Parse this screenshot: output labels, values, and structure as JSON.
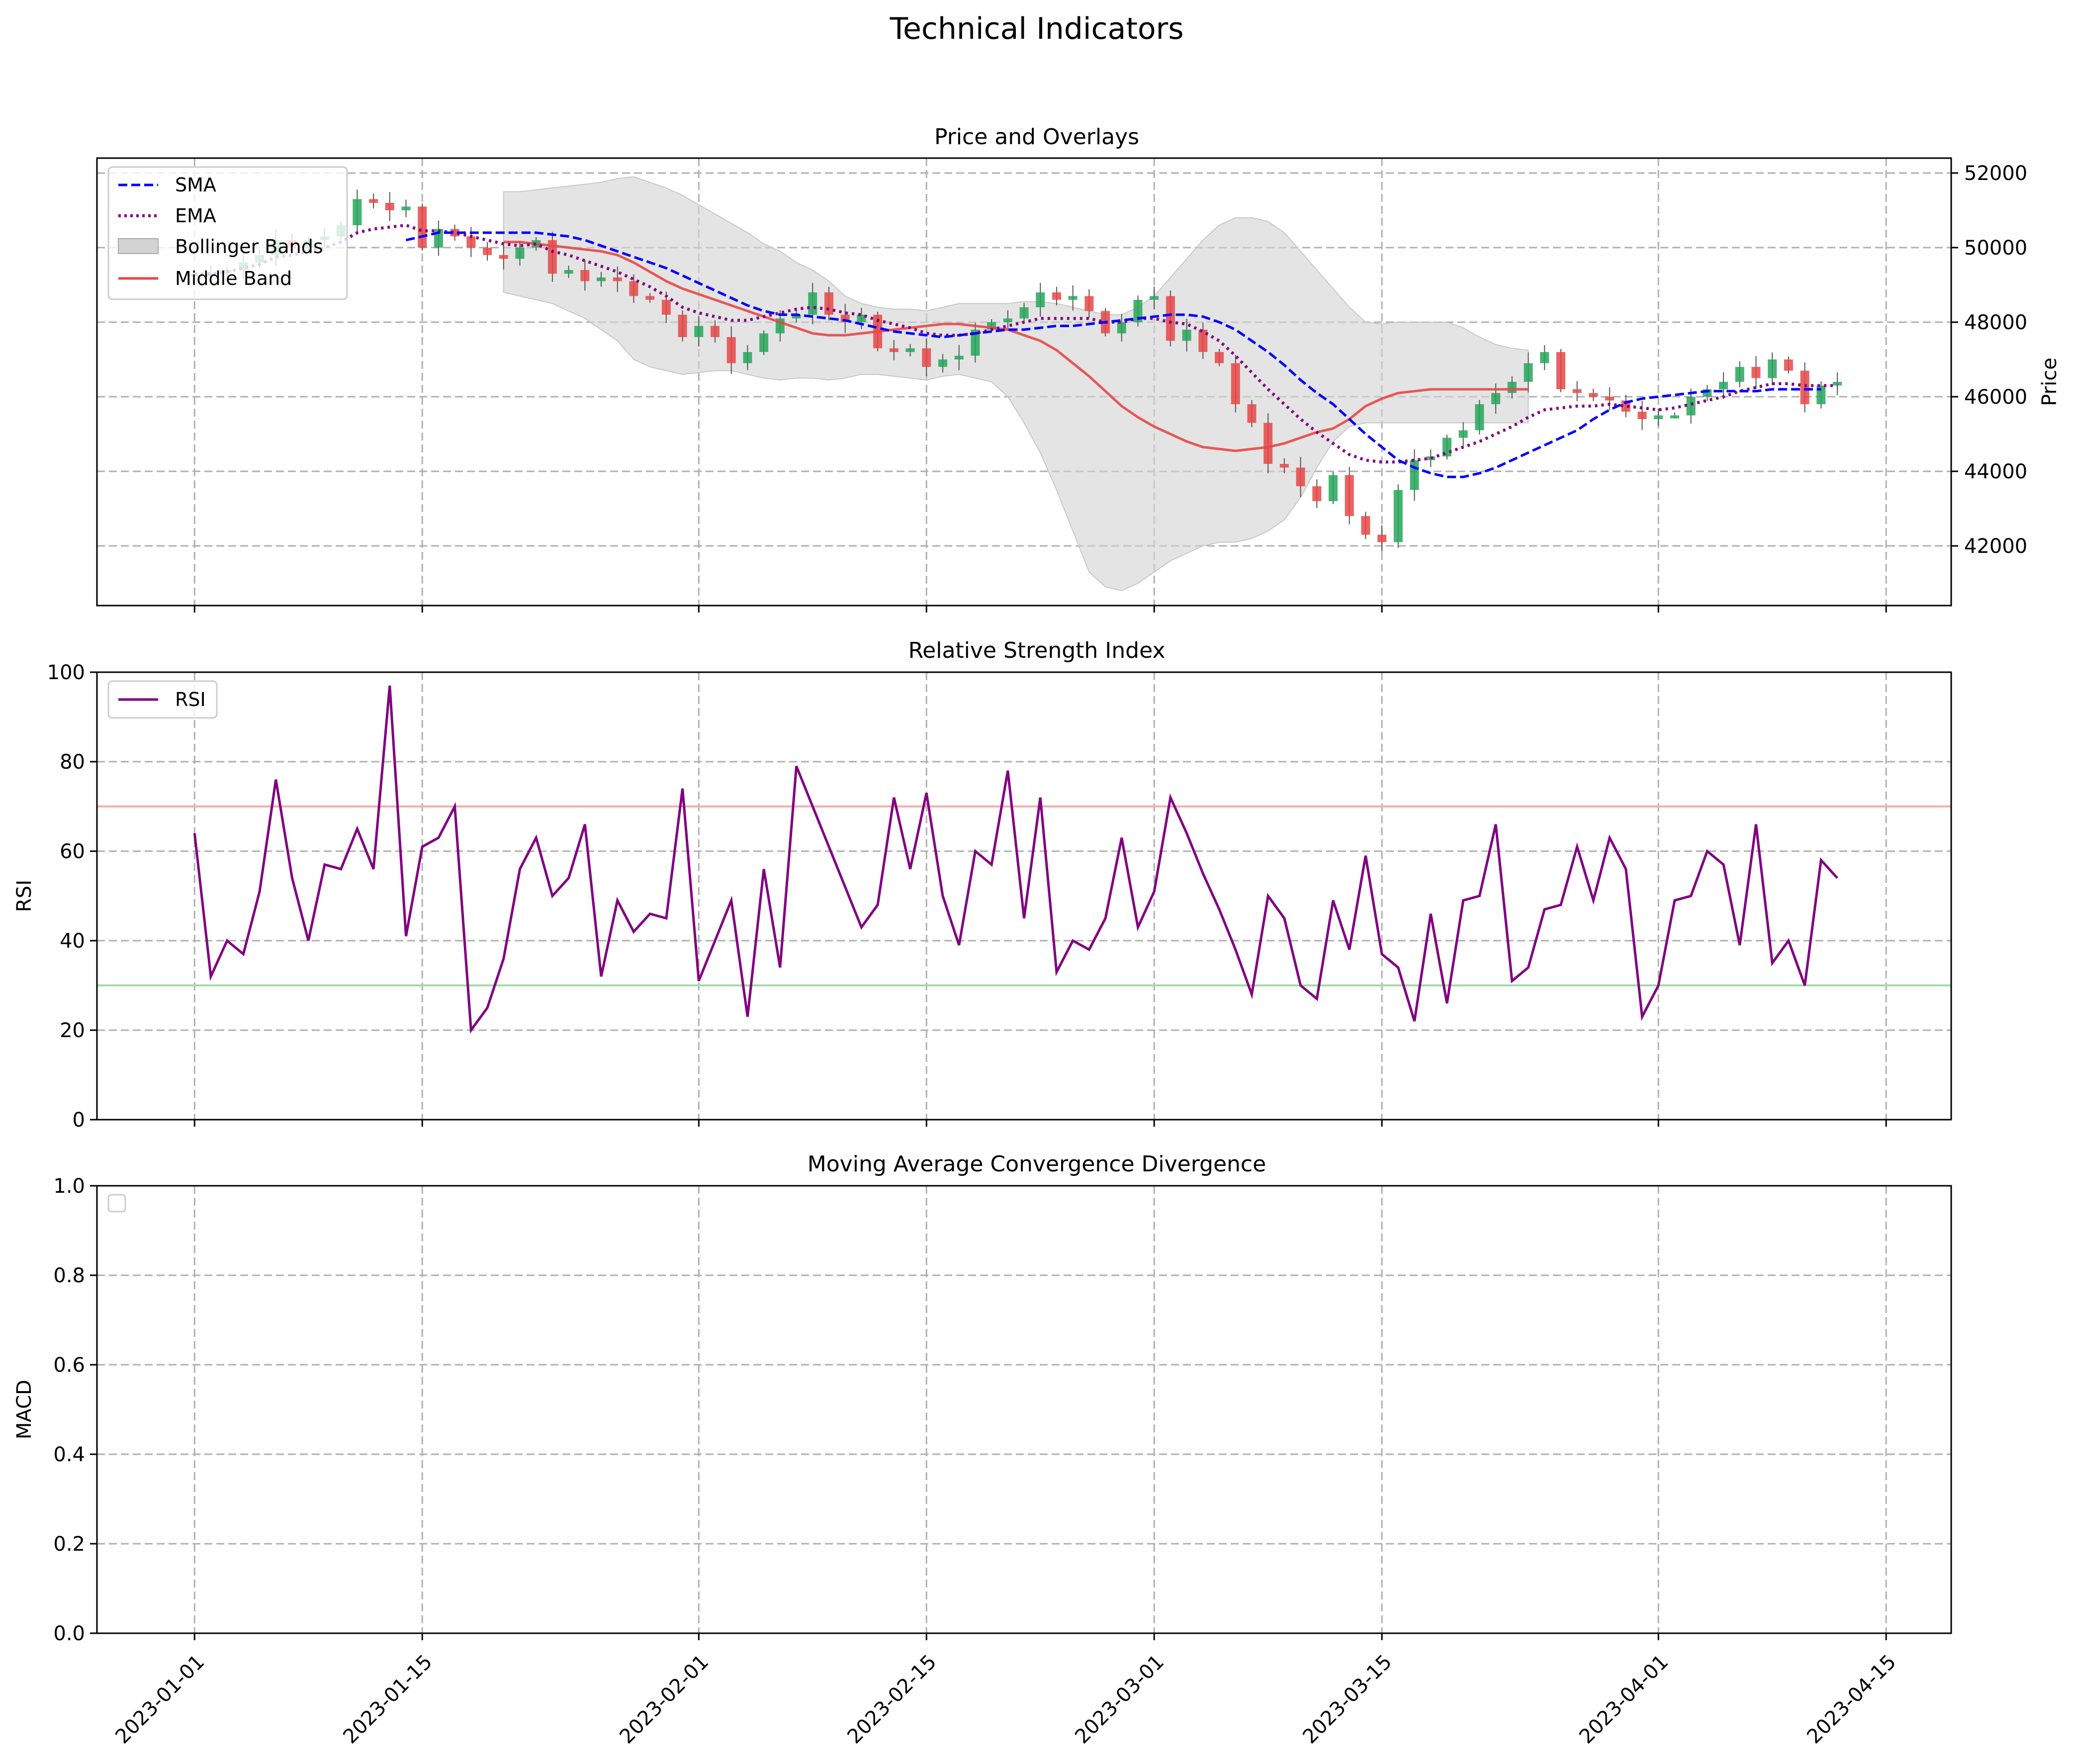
{
  "figure": {
    "suptitle": "Technical Indicators"
  },
  "x_ticks": [
    "2023-01-01",
    "2023-01-15",
    "2023-02-01",
    "2023-02-15",
    "2023-03-01",
    "2023-03-15",
    "2023-04-01",
    "2023-04-15"
  ],
  "chart_data": [
    {
      "type": "candlestick",
      "title": "Price and Overlays",
      "ylabel": "Price",
      "ylim": [
        40400,
        52400
      ],
      "y_ticks": [
        "42000",
        "44000",
        "46000",
        "48000",
        "50000",
        "52000"
      ],
      "y_axis_side": "right",
      "grid": true,
      "legend_position": "upper left",
      "x_start": "2023-01-01",
      "colors": {
        "up": "#26a65b",
        "down": "#e84646",
        "sma": "#0000ff",
        "ema": "#800080",
        "bollinger_fill": "#d3d3d3",
        "middle": "#e84646"
      },
      "legend": [
        {
          "label": "SMA",
          "style": "dashed",
          "color": "#0000ff"
        },
        {
          "label": "EMA",
          "style": "dotted",
          "color": "#800080"
        },
        {
          "label": "Bollinger Bands",
          "style": "fill",
          "color": "#d3d3d3"
        },
        {
          "label": "Middle Band",
          "style": "solid",
          "color": "#e84646"
        }
      ],
      "candles_close": [
        49300,
        49300,
        49400,
        49600,
        49800,
        50200,
        50000,
        50200,
        50300,
        50600,
        51300,
        51200,
        51000,
        51100,
        50000,
        50500,
        50300,
        50000,
        49800,
        49700,
        50000,
        50200,
        49300,
        49400,
        49100,
        49200,
        49100,
        48700,
        48600,
        48200,
        47600,
        47900,
        47600,
        46900,
        47200,
        47700,
        48100,
        48200,
        48800,
        48200,
        48000,
        48200,
        47300,
        47200,
        47300,
        46800,
        47000,
        47100,
        47800,
        48000,
        48100,
        48400,
        48800,
        48600,
        48700,
        48300,
        47700,
        48000,
        48600,
        48700,
        47500,
        47800,
        47200,
        46900,
        45800,
        45300,
        44200,
        44100,
        43600,
        43200,
        43900,
        42800,
        42300,
        42100,
        43500,
        44300,
        44400,
        44900,
        45100,
        45800,
        46100,
        46400,
        46900,
        47200,
        46200,
        46100,
        46000,
        45900,
        45600,
        45400,
        45500,
        45500,
        46000,
        46200,
        46400,
        46800,
        46500,
        47000,
        46700,
        45800,
        46300,
        46400
      ],
      "sma": {
        "start_index": 13,
        "values": [
          50200,
          50300,
          50400,
          50400,
          50400,
          50400,
          50400,
          50400,
          50400,
          50350,
          50300,
          50200,
          50050,
          49900,
          49750,
          49600,
          49450,
          49250,
          49050,
          48850,
          48650,
          48450,
          48300,
          48200,
          48200,
          48150,
          48100,
          48050,
          47950,
          47850,
          47750,
          47700,
          47650,
          47600,
          47650,
          47700,
          47750,
          47800,
          47800,
          47850,
          47900,
          47900,
          47950,
          48000,
          48050,
          48100,
          48150,
          48200,
          48200,
          48150,
          48000,
          47800,
          47500,
          47200,
          46850,
          46450,
          46100,
          45800,
          45400,
          45000,
          44650,
          44300,
          44100,
          43950,
          43850,
          43850,
          43950,
          44100,
          44300,
          44500,
          44700,
          44900,
          45100,
          45400,
          45650,
          45850,
          45950,
          46000,
          46050,
          46100,
          46150,
          46150,
          46150,
          46150,
          46200,
          46200,
          46200,
          46200
        ]
      },
      "ema": {
        "start_index": 0,
        "values": [
          49300,
          49300,
          49350,
          49450,
          49550,
          49750,
          49800,
          49900,
          50000,
          50150,
          50400,
          50500,
          50550,
          50600,
          50450,
          50450,
          50400,
          50300,
          50200,
          50100,
          50050,
          50100,
          49900,
          49800,
          49650,
          49500,
          49350,
          49150,
          48950,
          48700,
          48400,
          48250,
          48150,
          48050,
          48050,
          48150,
          48250,
          48350,
          48400,
          48350,
          48250,
          48200,
          48050,
          47950,
          47850,
          47700,
          47650,
          47650,
          47700,
          47800,
          47900,
          48000,
          48100,
          48100,
          48100,
          48100,
          48000,
          48000,
          48100,
          48100,
          48000,
          47950,
          47750,
          47500,
          47100,
          46650,
          46200,
          45800,
          45400,
          45050,
          44750,
          44450,
          44300,
          44250,
          44250,
          44300,
          44350,
          44500,
          44650,
          44800,
          45000,
          45200,
          45450,
          45650,
          45700,
          45750,
          45750,
          45800,
          45750,
          45700,
          45650,
          45700,
          45800,
          45900,
          46000,
          46150,
          46250,
          46350,
          46350,
          46300,
          46300,
          46300
        ]
      },
      "bollinger": {
        "start_index": 19,
        "upper": [
          51500,
          51500,
          51550,
          51600,
          51650,
          51700,
          51750,
          51850,
          51900,
          51750,
          51600,
          51400,
          51150,
          50900,
          50650,
          50400,
          50100,
          49900,
          49600,
          49400,
          49100,
          48700,
          48500,
          48400,
          48350,
          48350,
          48300,
          48400,
          48500,
          48500,
          48500,
          48500,
          48550,
          48550,
          48500,
          48400,
          48300,
          48200,
          48200,
          48400,
          48700,
          49200,
          49700,
          50200,
          50600,
          50800,
          50800,
          50700,
          50400,
          49900,
          49400,
          48900,
          48400,
          48000,
          47950,
          48000,
          48000,
          48000,
          48000,
          47850,
          47600,
          47400,
          47300,
          47250
        ],
        "lower": [
          48800,
          48700,
          48600,
          48500,
          48300,
          48100,
          47800,
          47500,
          47000,
          46800,
          46700,
          46600,
          46650,
          46700,
          46700,
          46600,
          46500,
          46450,
          46500,
          46500,
          46450,
          46500,
          46600,
          46600,
          46550,
          46500,
          46450,
          46550,
          46600,
          46500,
          46400,
          46000,
          45300,
          44500,
          43500,
          42400,
          41300,
          40900,
          40800,
          41000,
          41300,
          41600,
          41800,
          42000,
          42100,
          42100,
          42200,
          42400,
          42700,
          43300,
          44100,
          44800,
          45200,
          45300,
          45300,
          45300,
          45300,
          45300,
          45300,
          45300,
          45300,
          45300,
          45300,
          45300
        ],
        "middle": [
          50150,
          50150,
          50100,
          50050,
          50000,
          49950,
          49900,
          49800,
          49600,
          49350,
          49100,
          48900,
          48750,
          48600,
          48450,
          48300,
          48150,
          48000,
          47850,
          47700,
          47650,
          47650,
          47700,
          47750,
          47800,
          47850,
          47900,
          47950,
          47950,
          47900,
          47850,
          47800,
          47650,
          47500,
          47250,
          46900,
          46550,
          46150,
          45750,
          45450,
          45200,
          45000,
          44800,
          44650,
          44600,
          44550,
          44600,
          44650,
          44750,
          44900,
          45050,
          45150,
          45400,
          45750,
          45950,
          46100,
          46150,
          46200,
          46200,
          46200,
          46200,
          46200,
          46200,
          46200
        ]
      }
    },
    {
      "type": "line",
      "title": "Relative Strength Index",
      "ylabel": "RSI",
      "ylim": [
        0,
        100
      ],
      "y_ticks": [
        "0",
        "20",
        "40",
        "60",
        "80",
        "100"
      ],
      "grid": true,
      "legend_position": "upper left",
      "x_start": "2023-01-01",
      "colors": {
        "rsi": "#800080",
        "overbought": "#ffaaaa",
        "oversold": "#a8d8a8"
      },
      "reference_lines": [
        70,
        30
      ],
      "series": [
        {
          "name": "RSI",
          "values": [
            64,
            32,
            40,
            37,
            51,
            76,
            54,
            40,
            57,
            56,
            65,
            56,
            97,
            41,
            61,
            63,
            70,
            20,
            25,
            36,
            56,
            63,
            50,
            54,
            66,
            32,
            49,
            42,
            46,
            45,
            74,
            31,
            40,
            49,
            23,
            56,
            34,
            79,
            70,
            61,
            52,
            43,
            48,
            72,
            56,
            73,
            50,
            39,
            60,
            57,
            78,
            45,
            72,
            33,
            40,
            38,
            45,
            63,
            43,
            51,
            72,
            64,
            55,
            47,
            38,
            28,
            50,
            45,
            30,
            27,
            49,
            38,
            59,
            37,
            34,
            22,
            46,
            26,
            49,
            50,
            66,
            31,
            34,
            47,
            48,
            61,
            49,
            63,
            56,
            23,
            30,
            49,
            50,
            60,
            57,
            39,
            66,
            35,
            40,
            30,
            58,
            54
          ]
        }
      ]
    },
    {
      "type": "line",
      "title": "Moving Average Convergence Divergence",
      "ylabel": "MACD",
      "ylim": [
        0,
        1
      ],
      "y_ticks": [
        "0.0",
        "0.2",
        "0.4",
        "0.6",
        "0.8",
        "1.0"
      ],
      "grid": true,
      "legend_position": "upper left",
      "series": []
    }
  ]
}
